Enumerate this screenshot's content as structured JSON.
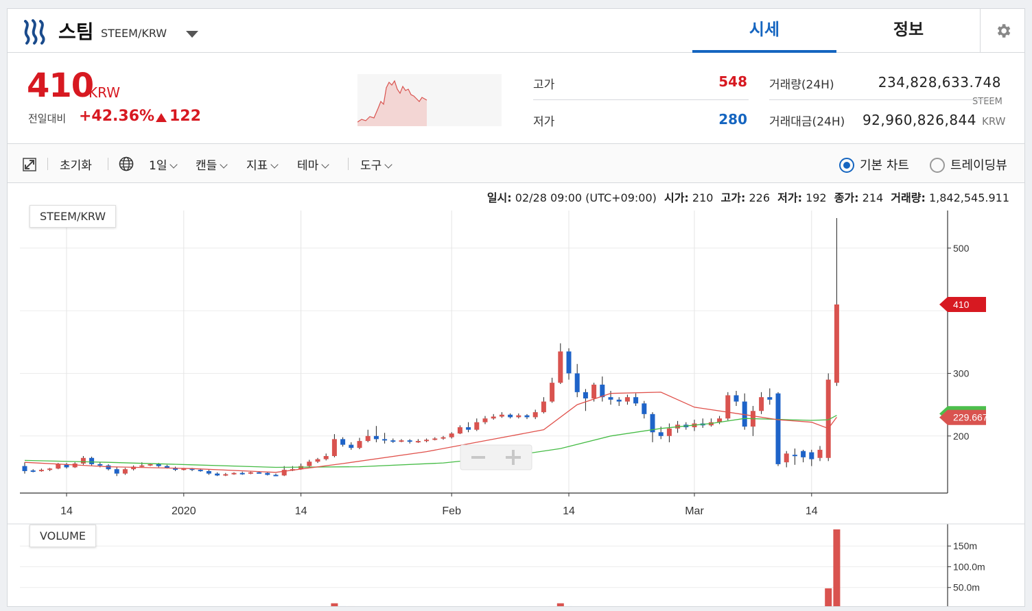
{
  "header": {
    "coin_name": "스팀",
    "pair": "STEEM/KRW",
    "tabs": [
      {
        "label": "시세",
        "active": true
      },
      {
        "label": "정보",
        "active": false
      }
    ],
    "settings_icon": "gear-icon",
    "logo_icon": "steem-logo-icon"
  },
  "price": {
    "current": "410",
    "unit": "KRW",
    "change_label": "전일대비",
    "change_pct": "+42.36%",
    "change_abs": "122",
    "direction_icon": "triangle-up-icon"
  },
  "stats": {
    "high_label": "고가",
    "high": "548",
    "low_label": "저가",
    "low": "280",
    "volume_label": "거래량(24H)",
    "volume": "234,828,633.748",
    "volume_unit": "STEEM",
    "amount_label": "거래대금(24H)",
    "amount": "92,960,826,844",
    "amount_unit": "KRW"
  },
  "toolbar": {
    "expand_icon": "expand-icon",
    "reset": "초기화",
    "globe_icon": "globe-icon",
    "interval": "1일",
    "candle": "캔들",
    "indicator": "지표",
    "theme": "테마",
    "tools": "도구",
    "radio_basic": "기본 차트",
    "radio_tradingview": "트레이딩뷰",
    "selected": "기본 차트"
  },
  "ohlc_line": {
    "date_label": "일시:",
    "date": "02/28 09:00 (UTC+09:00)",
    "open_label": "시가:",
    "open": "210",
    "high_label": "고가:",
    "high": "226",
    "low_label": "저가:",
    "low": "192",
    "close_label": "종가:",
    "close": "214",
    "volume_label": "거래량:",
    "volume": "1,842,545.911"
  },
  "colors": {
    "up": "#d9534f",
    "down": "#1e63c8",
    "accent": "#1565c0",
    "ma_short": "#e0504a",
    "ma_long": "#44bb44",
    "price_red": "#d71921"
  },
  "chart_data": {
    "type": "candlestick",
    "title": "STEEM/KRW",
    "x_ticks": [
      "14",
      "2020",
      "14",
      "Feb",
      "14",
      "Mar",
      "14"
    ],
    "y_ticks": [
      200,
      300,
      500
    ],
    "ylim": [
      110,
      560
    ],
    "current_price_tag": "410",
    "ma_tag": "229.667",
    "volume_pane_title": "VOLUME",
    "volume_ticks": [
      "50.0m",
      "100.0m",
      "150m"
    ],
    "volume_tick_values": [
      50,
      100,
      150
    ],
    "volume_ylim": [
      0,
      190
    ],
    "x_tick_index": [
      5,
      19,
      33,
      51,
      65,
      80,
      94
    ],
    "candles": [
      [
        152,
        144,
        158,
        140
      ],
      [
        145,
        144,
        147,
        142
      ],
      [
        144,
        146,
        148,
        143
      ],
      [
        146,
        148,
        149,
        144
      ],
      [
        148,
        155,
        157,
        147
      ],
      [
        155,
        150,
        157,
        148
      ],
      [
        150,
        156,
        158,
        149
      ],
      [
        156,
        165,
        168,
        154
      ],
      [
        165,
        155,
        167,
        153
      ],
      [
        155,
        153,
        158,
        150
      ],
      [
        153,
        147,
        155,
        145
      ],
      [
        147,
        140,
        150,
        136
      ],
      [
        140,
        147,
        149,
        138
      ],
      [
        147,
        151,
        153,
        145
      ],
      [
        151,
        153,
        158,
        150
      ],
      [
        153,
        155,
        156,
        152
      ],
      [
        155,
        152,
        157,
        150
      ],
      [
        152,
        149,
        154,
        148
      ],
      [
        149,
        146,
        151,
        144
      ],
      [
        146,
        148,
        149,
        145
      ],
      [
        148,
        146,
        149,
        144
      ],
      [
        146,
        144,
        148,
        143
      ],
      [
        144,
        140,
        146,
        138
      ],
      [
        140,
        137,
        142,
        136
      ],
      [
        137,
        139,
        141,
        136
      ],
      [
        139,
        141,
        142,
        138
      ],
      [
        141,
        140,
        143,
        138
      ],
      [
        140,
        142,
        143,
        139
      ],
      [
        142,
        141,
        143,
        140
      ],
      [
        141,
        138,
        142,
        137
      ],
      [
        138,
        137,
        140,
        136
      ],
      [
        137,
        146,
        152,
        136
      ],
      [
        146,
        147,
        152,
        144
      ],
      [
        147,
        152,
        156,
        146
      ],
      [
        152,
        159,
        162,
        150
      ],
      [
        159,
        163,
        165,
        157
      ],
      [
        163,
        168,
        172,
        161
      ],
      [
        168,
        195,
        203,
        166
      ],
      [
        195,
        186,
        198,
        183
      ],
      [
        186,
        181,
        190,
        178
      ],
      [
        181,
        192,
        197,
        179
      ],
      [
        192,
        200,
        210,
        190
      ],
      [
        200,
        195,
        216,
        190
      ],
      [
        195,
        193,
        205,
        188
      ],
      [
        193,
        192,
        196,
        189
      ],
      [
        192,
        193,
        195,
        190
      ],
      [
        193,
        191,
        195,
        188
      ],
      [
        191,
        192,
        195,
        189
      ],
      [
        192,
        194,
        196,
        190
      ],
      [
        194,
        196,
        198,
        193
      ],
      [
        196,
        198,
        200,
        194
      ],
      [
        198,
        204,
        206,
        196
      ],
      [
        204,
        214,
        217,
        203
      ],
      [
        214,
        210,
        222,
        206
      ],
      [
        210,
        222,
        228,
        208
      ],
      [
        222,
        228,
        232,
        219
      ],
      [
        228,
        231,
        235,
        226
      ],
      [
        231,
        234,
        238,
        229
      ],
      [
        234,
        230,
        236,
        228
      ],
      [
        230,
        233,
        236,
        228
      ],
      [
        233,
        230,
        235,
        227
      ],
      [
        230,
        238,
        242,
        227
      ],
      [
        238,
        255,
        262,
        236
      ],
      [
        255,
        285,
        293,
        253
      ],
      [
        285,
        335,
        348,
        283
      ],
      [
        335,
        300,
        340,
        290
      ],
      [
        300,
        270,
        315,
        262
      ],
      [
        270,
        260,
        275,
        240
      ],
      [
        260,
        282,
        285,
        255
      ],
      [
        282,
        262,
        295,
        255
      ],
      [
        262,
        258,
        272,
        250
      ],
      [
        258,
        255,
        262,
        248
      ],
      [
        255,
        262,
        266,
        250
      ],
      [
        262,
        252,
        268,
        248
      ],
      [
        252,
        235,
        256,
        228
      ],
      [
        235,
        206,
        238,
        190
      ],
      [
        206,
        200,
        215,
        195
      ],
      [
        200,
        212,
        220,
        190
      ],
      [
        212,
        218,
        224,
        205
      ],
      [
        218,
        214,
        222,
        210
      ],
      [
        214,
        220,
        226,
        208
      ],
      [
        220,
        217,
        228,
        213
      ],
      [
        217,
        222,
        228,
        215
      ],
      [
        222,
        228,
        232,
        219
      ],
      [
        228,
        265,
        270,
        225
      ],
      [
        265,
        255,
        272,
        248
      ],
      [
        255,
        215,
        268,
        210
      ],
      [
        215,
        240,
        248,
        200
      ],
      [
        240,
        262,
        270,
        235
      ],
      [
        262,
        258,
        276,
        250
      ],
      [
        268,
        155,
        270,
        152
      ],
      [
        158,
        172,
        176,
        150
      ],
      [
        170,
        168,
        180,
        154
      ],
      [
        176,
        166,
        178,
        158
      ],
      [
        174,
        163,
        178,
        152
      ],
      [
        165,
        178,
        184,
        160
      ],
      [
        165,
        290,
        300,
        160
      ],
      [
        285,
        410,
        548,
        280
      ]
    ],
    "ma_short": [
      [
        0,
        158
      ],
      [
        10,
        151
      ],
      [
        20,
        148
      ],
      [
        30,
        142
      ],
      [
        38,
        156
      ],
      [
        48,
        175
      ],
      [
        56,
        195
      ],
      [
        62,
        210
      ],
      [
        66,
        250
      ],
      [
        70,
        268
      ],
      [
        76,
        270
      ],
      [
        80,
        246
      ],
      [
        86,
        234
      ],
      [
        90,
        226
      ],
      [
        94,
        222
      ],
      [
        96,
        212
      ],
      [
        97,
        230
      ]
    ],
    "ma_long": [
      [
        0,
        161
      ],
      [
        10,
        158
      ],
      [
        20,
        154
      ],
      [
        30,
        150
      ],
      [
        40,
        151
      ],
      [
        50,
        157
      ],
      [
        58,
        168
      ],
      [
        64,
        180
      ],
      [
        70,
        200
      ],
      [
        76,
        212
      ],
      [
        82,
        220
      ],
      [
        86,
        228
      ],
      [
        94,
        225
      ],
      [
        96,
        226
      ],
      [
        97,
        233
      ]
    ],
    "volume": [
      [
        37,
        12,
        "up"
      ],
      [
        38,
        5,
        "down"
      ],
      [
        39,
        5,
        "up"
      ],
      [
        40,
        4,
        "up"
      ],
      [
        41,
        4,
        "up"
      ],
      [
        42,
        4,
        "up"
      ],
      [
        47,
        2,
        "up"
      ],
      [
        48,
        2,
        "up"
      ],
      [
        49,
        2,
        "down"
      ],
      [
        50,
        2,
        "up"
      ],
      [
        51,
        3,
        "up"
      ],
      [
        52,
        3,
        "down"
      ],
      [
        62,
        4,
        "up"
      ],
      [
        63,
        5,
        "up"
      ],
      [
        64,
        12,
        "up"
      ],
      [
        65,
        5,
        "down"
      ],
      [
        66,
        4,
        "down"
      ],
      [
        67,
        3,
        "down"
      ],
      [
        68,
        3,
        "up"
      ],
      [
        96,
        48,
        "up"
      ],
      [
        97,
        190,
        "up"
      ],
      [
        13,
        2,
        "up"
      ]
    ]
  }
}
